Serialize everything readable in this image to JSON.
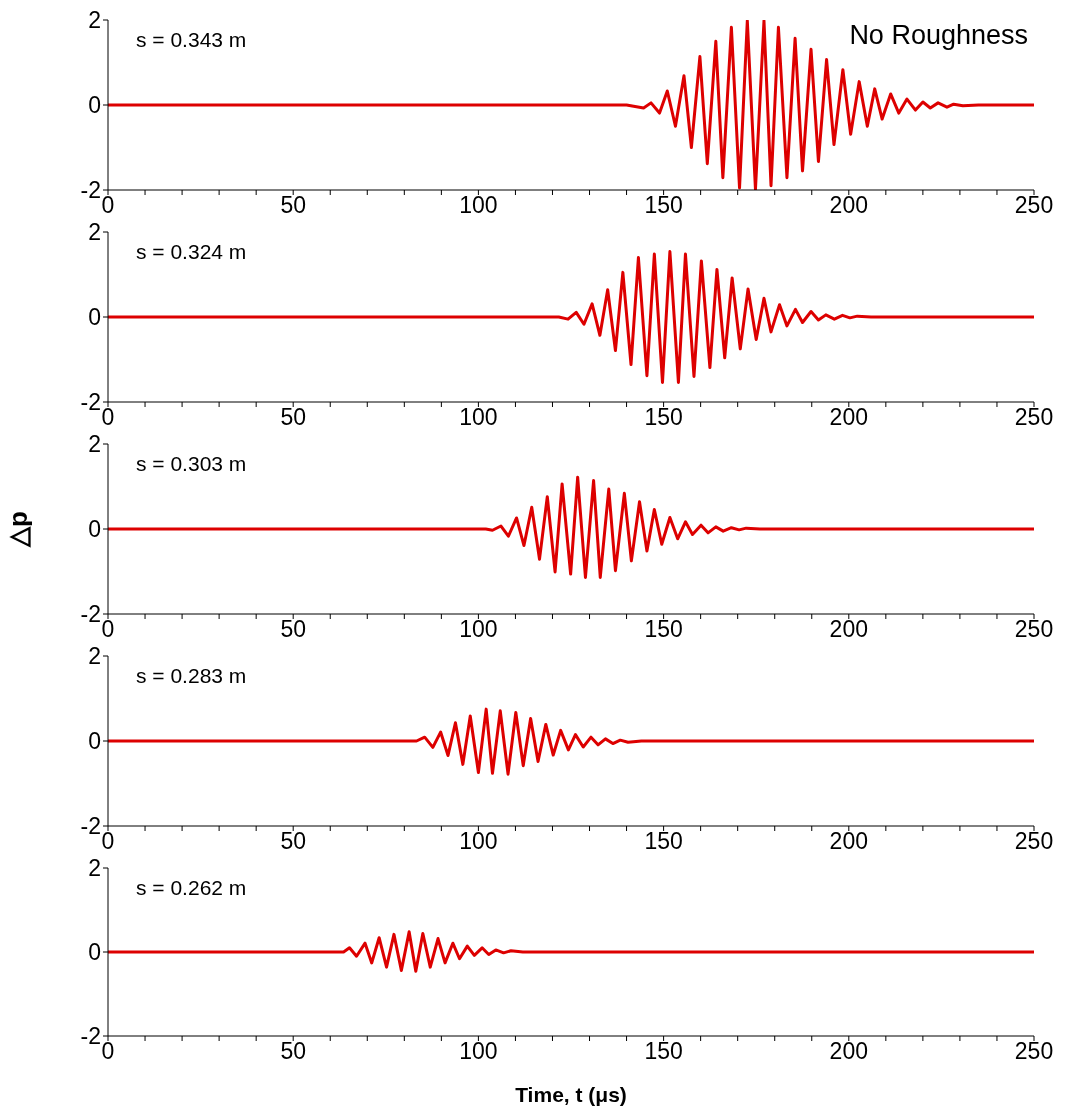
{
  "chart_data": [
    {
      "type": "line",
      "annotations": [
        "s = 0.343 m",
        "No Roughness"
      ],
      "xlim": [
        0,
        250
      ],
      "ylim": [
        -2,
        2
      ],
      "yticks": [
        -2,
        0,
        2
      ],
      "xticks": [
        0,
        {
          "value": 10,
          "label": null
        },
        {
          "value": 20,
          "label": null
        },
        {
          "value": 30,
          "label": null
        },
        {
          "value": 40,
          "label": null
        },
        50,
        {
          "value": 60,
          "label": null
        },
        {
          "value": 70,
          "label": null
        },
        {
          "value": 80,
          "label": null
        },
        {
          "value": 90,
          "label": null
        },
        100,
        {
          "value": 110,
          "label": null
        },
        {
          "value": 120,
          "label": null
        },
        {
          "value": 130,
          "label": null
        },
        {
          "value": 140,
          "label": null
        },
        150,
        {
          "value": 160,
          "label": null
        },
        {
          "value": 170,
          "label": null
        },
        {
          "value": 180,
          "label": null
        },
        {
          "value": 190,
          "label": null
        },
        200,
        {
          "value": 210,
          "label": null
        },
        {
          "value": 220,
          "label": null
        },
        {
          "value": 230,
          "label": null
        },
        {
          "value": 240,
          "label": null
        },
        250
      ],
      "series": [
        {
          "color": "#dd0000",
          "x": [
            0,
            140,
            144.6,
            146.6,
            148.9,
            151.0,
            153.2,
            155.5,
            157.5,
            159.8,
            161.8,
            164.1,
            166.0,
            168.3,
            170.5,
            172.6,
            174.8,
            177.1,
            179.0,
            181.0,
            183.3,
            185.5,
            187.5,
            189.8,
            191.8,
            194.0,
            196.0,
            198.4,
            200.5,
            202.8,
            205.0,
            207.0,
            209.0,
            211.3,
            213.5,
            215.7,
            218.0,
            220.0,
            222.0,
            224.1,
            226.5,
            228.3,
            230.8,
            235,
            250
          ],
          "values": [
            0,
            0,
            -0.07,
            0.05,
            -0.19,
            0.33,
            -0.5,
            0.69,
            -1.0,
            1.14,
            -1.38,
            1.5,
            -1.71,
            1.83,
            -1.95,
            1.98,
            -1.98,
            1.98,
            -1.9,
            1.83,
            -1.71,
            1.57,
            -1.55,
            1.31,
            -1.33,
            1.07,
            -0.93,
            0.83,
            -0.69,
            0.55,
            -0.5,
            0.38,
            -0.33,
            0.26,
            -0.19,
            0.14,
            -0.12,
            0.07,
            -0.07,
            0.05,
            -0.05,
            0.02,
            -0.02,
            0,
            0
          ]
        }
      ]
    },
    {
      "type": "line",
      "annotations": [
        "s = 0.324 m"
      ],
      "xlim": [
        0,
        250
      ],
      "ylim": [
        -2,
        2
      ],
      "yticks": [
        -2,
        0,
        2
      ],
      "xticks": [
        0,
        {
          "value": 10,
          "label": null
        },
        {
          "value": 20,
          "label": null
        },
        {
          "value": 30,
          "label": null
        },
        {
          "value": 40,
          "label": null
        },
        50,
        {
          "value": 60,
          "label": null
        },
        {
          "value": 70,
          "label": null
        },
        {
          "value": 80,
          "label": null
        },
        {
          "value": 90,
          "label": null
        },
        100,
        {
          "value": 110,
          "label": null
        },
        {
          "value": 120,
          "label": null
        },
        {
          "value": 130,
          "label": null
        },
        {
          "value": 140,
          "label": null
        },
        150,
        {
          "value": 160,
          "label": null
        },
        {
          "value": 170,
          "label": null
        },
        {
          "value": 180,
          "label": null
        },
        {
          "value": 190,
          "label": null
        },
        200,
        {
          "value": 210,
          "label": null
        },
        {
          "value": 220,
          "label": null
        },
        {
          "value": 230,
          "label": null
        },
        {
          "value": 240,
          "label": null
        },
        250
      ],
      "series": [
        {
          "color": "#dd0000",
          "x": [
            0,
            121.7,
            124.2,
            126.4,
            128.5,
            130.7,
            132.8,
            134.9,
            137.0,
            139.0,
            141.2,
            143.2,
            145.5,
            147.5,
            149.7,
            151.7,
            154.0,
            155.9,
            158.2,
            160.2,
            162.5,
            164.4,
            166.5,
            168.5,
            170.7,
            172.8,
            175.0,
            177.1,
            179.0,
            181.3,
            183.3,
            185.6,
            187.5,
            189.8,
            191.8,
            193.8,
            196.1,
            198.3,
            200.3,
            202.3,
            206,
            250
          ],
          "values": [
            0,
            0,
            -0.05,
            0.11,
            -0.17,
            0.31,
            -0.43,
            0.64,
            -0.79,
            1.05,
            -1.12,
            1.4,
            -1.38,
            1.48,
            -1.54,
            1.54,
            -1.54,
            1.48,
            -1.4,
            1.32,
            -1.19,
            1.12,
            -0.96,
            0.92,
            -0.75,
            0.66,
            -0.53,
            0.44,
            -0.35,
            0.29,
            -0.21,
            0.18,
            -0.13,
            0.13,
            -0.07,
            0.05,
            -0.05,
            0.04,
            -0.02,
            0.02,
            0,
            0
          ]
        }
      ]
    },
    {
      "type": "line",
      "annotations": [
        "s = 0.303 m"
      ],
      "ylabel": "△p",
      "xlim": [
        0,
        250
      ],
      "ylim": [
        -2,
        2
      ],
      "yticks": [
        -2,
        0,
        2
      ],
      "xticks": [
        0,
        {
          "value": 10,
          "label": null
        },
        {
          "value": 20,
          "label": null
        },
        {
          "value": 30,
          "label": null
        },
        {
          "value": 40,
          "label": null
        },
        50,
        {
          "value": 60,
          "label": null
        },
        {
          "value": 70,
          "label": null
        },
        {
          "value": 80,
          "label": null
        },
        {
          "value": 90,
          "label": null
        },
        100,
        {
          "value": 110,
          "label": null
        },
        {
          "value": 120,
          "label": null
        },
        {
          "value": 130,
          "label": null
        },
        {
          "value": 140,
          "label": null
        },
        150,
        {
          "value": 160,
          "label": null
        },
        {
          "value": 170,
          "label": null
        },
        {
          "value": 180,
          "label": null
        },
        {
          "value": 190,
          "label": null
        },
        200,
        {
          "value": 210,
          "label": null
        },
        {
          "value": 220,
          "label": null
        },
        {
          "value": 230,
          "label": null
        },
        {
          "value": 240,
          "label": null
        },
        250
      ],
      "series": [
        {
          "color": "#dd0000",
          "x": [
            0,
            102.0,
            103.8,
            106.1,
            108.1,
            110.3,
            112.3,
            114.4,
            116.5,
            118.6,
            120.7,
            122.6,
            124.9,
            126.8,
            128.9,
            131.1,
            132.9,
            135.2,
            137.0,
            139.4,
            141.3,
            143.5,
            145.5,
            147.5,
            149.5,
            151.7,
            153.8,
            155.9,
            157.8,
            160.1,
            162.0,
            164.1,
            166.1,
            168.3,
            170.4,
            172.3,
            176,
            250
          ],
          "values": [
            0,
            0,
            -0.03,
            0.07,
            -0.17,
            0.26,
            -0.39,
            0.51,
            -0.71,
            0.76,
            -1.01,
            1.06,
            -1.06,
            1.22,
            -1.14,
            1.14,
            -1.14,
            0.94,
            -0.98,
            0.84,
            -0.75,
            0.64,
            -0.52,
            0.46,
            -0.36,
            0.27,
            -0.23,
            0.17,
            -0.13,
            0.09,
            -0.09,
            0.05,
            -0.05,
            0.03,
            -0.02,
            0.02,
            0,
            0
          ]
        }
      ]
    },
    {
      "type": "line",
      "annotations": [
        "s = 0.283 m"
      ],
      "xlim": [
        0,
        250
      ],
      "ylim": [
        -2,
        2
      ],
      "yticks": [
        -2,
        0,
        2
      ],
      "xticks": [
        0,
        {
          "value": 10,
          "label": null
        },
        {
          "value": 20,
          "label": null
        },
        {
          "value": 30,
          "label": null
        },
        {
          "value": 40,
          "label": null
        },
        50,
        {
          "value": 60,
          "label": null
        },
        {
          "value": 70,
          "label": null
        },
        {
          "value": 80,
          "label": null
        },
        {
          "value": 90,
          "label": null
        },
        100,
        {
          "value": 110,
          "label": null
        },
        {
          "value": 120,
          "label": null
        },
        {
          "value": 130,
          "label": null
        },
        {
          "value": 140,
          "label": null
        },
        150,
        {
          "value": 160,
          "label": null
        },
        {
          "value": 170,
          "label": null
        },
        {
          "value": 180,
          "label": null
        },
        {
          "value": 190,
          "label": null
        },
        200,
        {
          "value": 210,
          "label": null
        },
        {
          "value": 220,
          "label": null
        },
        {
          "value": 230,
          "label": null
        },
        {
          "value": 240,
          "label": null
        },
        250
      ],
      "series": [
        {
          "color": "#dd0000",
          "x": [
            0,
            83.3,
            85.5,
            87.7,
            89.8,
            91.8,
            93.8,
            95.8,
            97.8,
            100.0,
            102.1,
            103.8,
            105.9,
            108.0,
            110.1,
            112.1,
            114.1,
            116.1,
            118.2,
            120.2,
            122.2,
            124.3,
            126.2,
            128.3,
            130.4,
            132.3,
            134.3,
            136.3,
            138.3,
            140.4,
            144,
            250
          ],
          "values": [
            0,
            0,
            0.09,
            -0.15,
            0.21,
            -0.34,
            0.43,
            -0.55,
            0.59,
            -0.74,
            0.75,
            -0.76,
            0.71,
            -0.78,
            0.67,
            -0.58,
            0.53,
            -0.48,
            0.39,
            -0.33,
            0.25,
            -0.21,
            0.15,
            -0.14,
            0.09,
            -0.09,
            0.05,
            -0.06,
            0.02,
            -0.03,
            0,
            0
          ]
        }
      ]
    },
    {
      "type": "line",
      "annotations": [
        "s = 0.262 m"
      ],
      "xlabel": "Time, t (μs)",
      "xlim": [
        0,
        250
      ],
      "ylim": [
        -2,
        2
      ],
      "yticks": [
        -2,
        0,
        2
      ],
      "xticks": [
        0,
        {
          "value": 10,
          "label": null
        },
        {
          "value": 20,
          "label": null
        },
        {
          "value": 30,
          "label": null
        },
        {
          "value": 40,
          "label": null
        },
        50,
        {
          "value": 60,
          "label": null
        },
        {
          "value": 70,
          "label": null
        },
        {
          "value": 80,
          "label": null
        },
        {
          "value": 90,
          "label": null
        },
        100,
        {
          "value": 110,
          "label": null
        },
        {
          "value": 120,
          "label": null
        },
        {
          "value": 130,
          "label": null
        },
        {
          "value": 140,
          "label": null
        },
        150,
        {
          "value": 160,
          "label": null
        },
        {
          "value": 170,
          "label": null
        },
        {
          "value": 180,
          "label": null
        },
        {
          "value": 190,
          "label": null
        },
        200,
        {
          "value": 210,
          "label": null
        },
        {
          "value": 220,
          "label": null
        },
        {
          "value": 230,
          "label": null
        },
        {
          "value": 240,
          "label": null
        },
        250
      ],
      "series": [
        {
          "color": "#dd0000",
          "x": [
            0,
            63.6,
            65.2,
            67.1,
            69.4,
            71.2,
            73.2,
            75.2,
            77.2,
            79.2,
            81.3,
            83.1,
            85.0,
            87.0,
            89.1,
            91.0,
            93.1,
            94.9,
            97.0,
            98.9,
            101.0,
            102.8,
            104.7,
            106.8,
            108.8,
            112,
            250
          ],
          "values": [
            0,
            0,
            0.1,
            -0.1,
            0.21,
            -0.26,
            0.34,
            -0.36,
            0.42,
            -0.44,
            0.48,
            -0.46,
            0.44,
            -0.36,
            0.32,
            -0.26,
            0.21,
            -0.16,
            0.14,
            -0.08,
            0.1,
            -0.06,
            0.05,
            -0.02,
            0.03,
            0,
            0
          ]
        }
      ]
    }
  ]
}
